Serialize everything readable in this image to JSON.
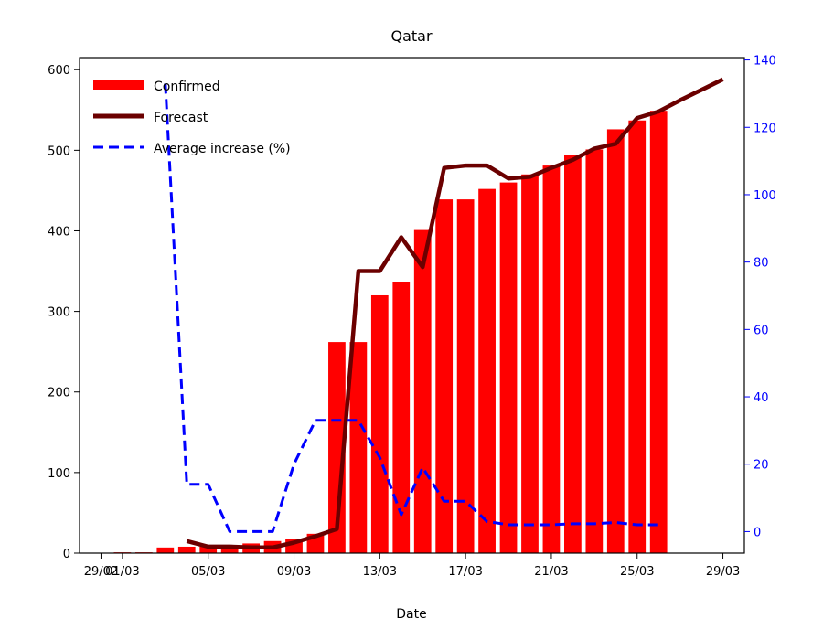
{
  "chart_data": {
    "type": "bar",
    "title": "Qatar",
    "xlabel": "Date",
    "ylabel": "",
    "ylabel_right": "",
    "x_ticks": [
      {
        "day": 0,
        "label": "29/02"
      },
      {
        "day": 1,
        "label": "01/03"
      },
      {
        "day": 5,
        "label": "05/03"
      },
      {
        "day": 9,
        "label": "09/03"
      },
      {
        "day": 13,
        "label": "13/03"
      },
      {
        "day": 17,
        "label": "17/03"
      },
      {
        "day": 21,
        "label": "21/03"
      },
      {
        "day": 25,
        "label": "25/03"
      },
      {
        "day": 29,
        "label": "29/03"
      }
    ],
    "xlim": [
      -1,
      30
    ],
    "ylim": [
      0,
      615
    ],
    "ylim_right": [
      -6.4,
      140.7
    ],
    "y_ticks": [
      0,
      100,
      200,
      300,
      400,
      500,
      600
    ],
    "y_ticks_right": [
      0,
      20,
      40,
      60,
      80,
      100,
      120,
      140
    ],
    "legend_position": "upper-left",
    "series": [
      {
        "name": "Confirmed",
        "kind": "bar",
        "axis": "left",
        "color": "#ff0000",
        "days": [
          1,
          2,
          3,
          4,
          5,
          6,
          7,
          8,
          9,
          10,
          11,
          12,
          13,
          14,
          15,
          16,
          17,
          18,
          19,
          20,
          21,
          22,
          23,
          24,
          25,
          26
        ],
        "values": [
          1,
          1,
          7,
          8,
          8,
          8,
          12,
          15,
          18,
          24,
          262,
          262,
          320,
          337,
          401,
          439,
          439,
          452,
          460,
          470,
          481,
          494,
          501,
          526,
          537,
          549
        ]
      },
      {
        "name": "Forecast",
        "kind": "line",
        "axis": "left",
        "color": "#6b0000",
        "days": [
          4,
          5,
          6,
          7,
          8,
          9,
          10,
          11,
          12,
          13,
          14,
          15,
          16,
          17,
          18,
          19,
          20,
          21,
          22,
          23,
          24,
          25,
          26,
          27,
          28,
          29
        ],
        "values": [
          15,
          8,
          8,
          7,
          7,
          13,
          21,
          30,
          350,
          350,
          392,
          355,
          478,
          481,
          481,
          465,
          467,
          478,
          488,
          502,
          508,
          540,
          548,
          562,
          575,
          588
        ]
      },
      {
        "name": "Average increase (%)",
        "kind": "line",
        "axis": "right",
        "color": "#0000ff",
        "days": [
          3,
          4,
          5,
          6,
          7,
          8,
          9,
          10,
          11,
          12,
          13,
          14,
          15,
          16,
          17,
          18,
          19,
          20,
          21,
          22,
          23,
          24,
          25,
          26
        ],
        "values": [
          133,
          14,
          14,
          0,
          0,
          0,
          20,
          33,
          33,
          33,
          22,
          5,
          19,
          9,
          9,
          3,
          2,
          2,
          2,
          2.3,
          2.3,
          2.7,
          2,
          2
        ]
      }
    ]
  }
}
